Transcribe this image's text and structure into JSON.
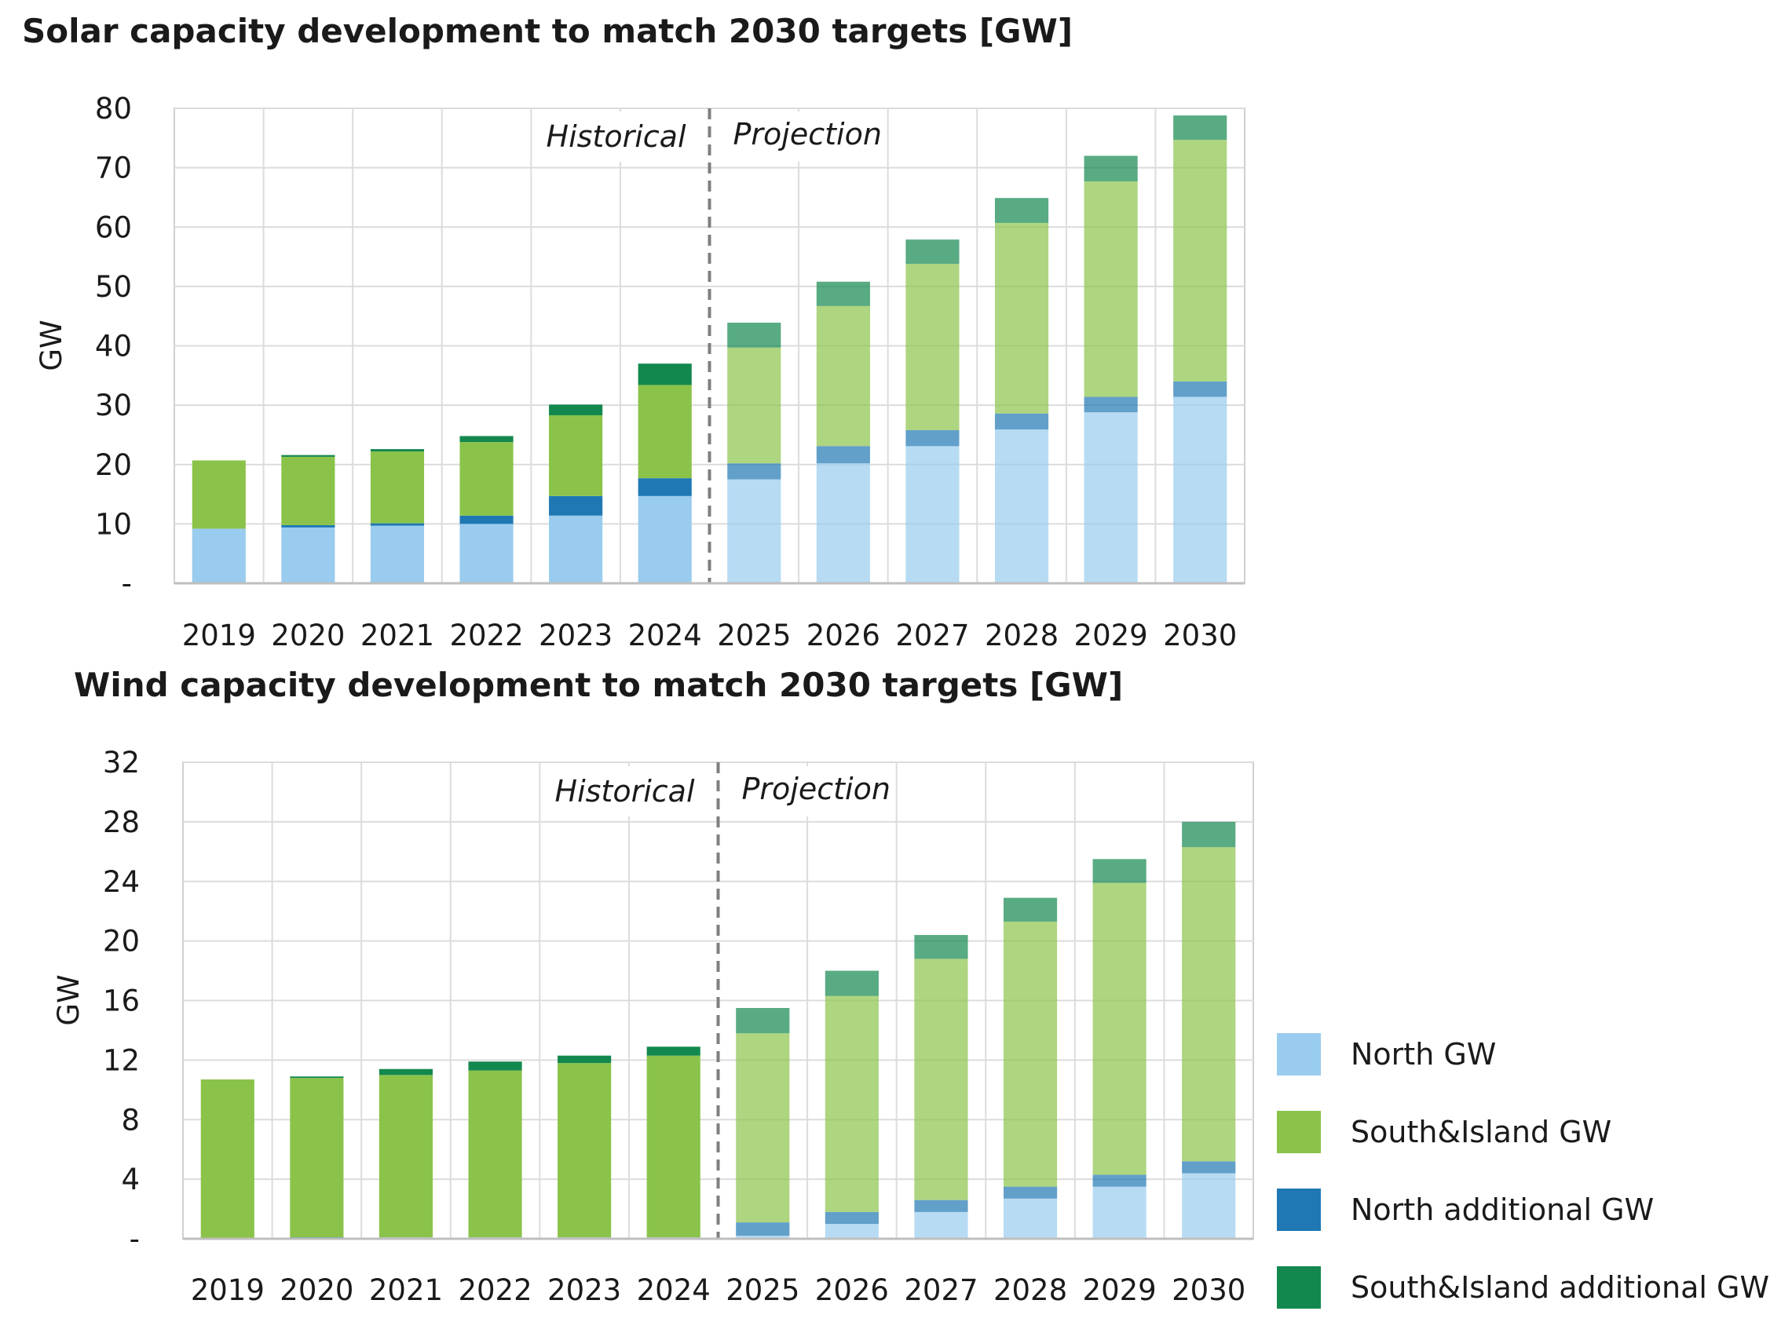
{
  "colors": {
    "north": "#99ccee",
    "south_island": "#8bc34a",
    "north_additional": "#1f78b4",
    "south_island_additional": "#13884e"
  },
  "legend": {
    "items": [
      {
        "label": "North GW",
        "color_key": "north"
      },
      {
        "label": "South&Island GW",
        "color_key": "south_island"
      },
      {
        "label": "North additional GW",
        "color_key": "north_additional"
      },
      {
        "label": "South&Island additional GW",
        "color_key": "south_island_additional"
      }
    ]
  },
  "chart_data": [
    {
      "type": "bar",
      "stacked": true,
      "title": "Solar capacity development to match 2030 targets [GW]",
      "ylabel": "GW",
      "ylim": [
        0,
        80
      ],
      "yticks": [
        0,
        10,
        20,
        30,
        40,
        50,
        60,
        70,
        80
      ],
      "ytick_labels": [
        "-",
        "10",
        "20",
        "30",
        "40",
        "50",
        "60",
        "70",
        "80"
      ],
      "categories": [
        "2019",
        "2020",
        "2021",
        "2022",
        "2023",
        "2024",
        "2025",
        "2026",
        "2027",
        "2028",
        "2029",
        "2030"
      ],
      "historical_label": "Historical",
      "projection_label": "Projection",
      "projection_start_index": 6,
      "series": [
        {
          "name": "North GW",
          "color_key": "north",
          "values": [
            9.2,
            9.4,
            9.7,
            10.0,
            11.4,
            14.7,
            17.5,
            20.2,
            23.1,
            25.9,
            28.8,
            31.4
          ]
        },
        {
          "name": "North additional GW",
          "color_key": "north_additional",
          "values": [
            0,
            0.4,
            0.4,
            1.4,
            3.3,
            3.0,
            2.7,
            2.9,
            2.7,
            2.7,
            2.6,
            2.6
          ]
        },
        {
          "name": "South&Island GW",
          "color_key": "south_island",
          "values": [
            11.5,
            11.5,
            12.1,
            12.4,
            13.6,
            15.7,
            19.5,
            23.6,
            28.0,
            32.1,
            36.3,
            40.7
          ]
        },
        {
          "name": "South&Island additional GW",
          "color_key": "south_island_additional",
          "values": [
            0,
            0.3,
            0.4,
            1.0,
            1.8,
            3.6,
            4.2,
            4.1,
            4.1,
            4.2,
            4.3,
            4.1
          ]
        }
      ]
    },
    {
      "type": "bar",
      "stacked": true,
      "title": "Wind capacity development to match 2030 targets [GW]",
      "ylabel": "GW",
      "ylim": [
        0,
        32
      ],
      "yticks": [
        0,
        4,
        8,
        12,
        16,
        20,
        24,
        28,
        32
      ],
      "ytick_labels": [
        "-",
        "4",
        "8",
        "12",
        "16",
        "20",
        "24",
        "28",
        "32"
      ],
      "categories": [
        "2019",
        "2020",
        "2021",
        "2022",
        "2023",
        "2024",
        "2025",
        "2026",
        "2027",
        "2028",
        "2029",
        "2030"
      ],
      "historical_label": "Historical",
      "projection_label": "Projection",
      "projection_start_index": 6,
      "series": [
        {
          "name": "North GW",
          "color_key": "north",
          "values": [
            0,
            0,
            0.1,
            0.1,
            0.1,
            0.1,
            0.2,
            1.0,
            1.8,
            2.7,
            3.5,
            4.4
          ]
        },
        {
          "name": "North additional GW",
          "color_key": "north_additional",
          "values": [
            0,
            0.1,
            0,
            0,
            0,
            0,
            0.9,
            0.8,
            0.8,
            0.8,
            0.8,
            0.8
          ]
        },
        {
          "name": "South&Island GW",
          "color_key": "south_island",
          "values": [
            10.7,
            10.7,
            10.9,
            11.2,
            11.7,
            12.2,
            12.7,
            14.5,
            16.2,
            17.8,
            19.6,
            21.1
          ]
        },
        {
          "name": "South&Island additional GW",
          "color_key": "south_island_additional",
          "values": [
            0,
            0.1,
            0.4,
            0.6,
            0.5,
            0.6,
            1.7,
            1.7,
            1.6,
            1.6,
            1.6,
            1.7
          ]
        }
      ]
    }
  ]
}
